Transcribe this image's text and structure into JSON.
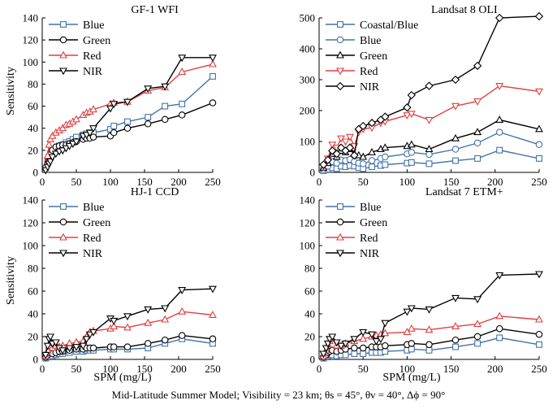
{
  "figure": {
    "xlabel": "SPM (mg/L)",
    "ylabel": "Sensitivity",
    "caption": "Mid-Latitude Summer Model; Visibility = 23 km; θs = 45°, θv = 40°, Δϕ = 90°"
  },
  "chart_data": [
    {
      "type": "line",
      "title": "GF-1 WFI",
      "xlim": [
        0,
        250
      ],
      "ylim": [
        0,
        140
      ],
      "xticks": [
        0,
        50,
        100,
        150,
        200,
        250
      ],
      "yticks": [
        0,
        20,
        40,
        60,
        80,
        100,
        120,
        140
      ],
      "legend_position": "top-left",
      "x": [
        5,
        8,
        10,
        12,
        15,
        20,
        25,
        30,
        35,
        40,
        45,
        50,
        60,
        65,
        70,
        75,
        100,
        105,
        125,
        155,
        180,
        205,
        250
      ],
      "series": [
        {
          "name": "Blue",
          "color": "#4472a8",
          "marker": "square",
          "values": [
            4,
            10,
            14,
            17,
            19,
            22,
            24,
            25,
            27,
            28,
            30,
            32,
            34,
            35,
            36,
            36,
            39,
            42,
            46,
            50,
            60,
            62,
            87
          ]
        },
        {
          "name": "Green",
          "color": "#000000",
          "marker": "circle",
          "values": [
            4,
            8,
            12,
            16,
            20,
            23,
            24,
            25,
            25,
            26,
            27,
            28,
            30,
            31,
            31,
            32,
            33,
            36,
            40,
            44,
            48,
            52,
            63
          ]
        },
        {
          "name": "Red",
          "color": "#e04040",
          "marker": "triangle-up",
          "values": [
            6,
            15,
            25,
            30,
            33,
            36,
            38,
            40,
            43,
            44,
            46,
            48,
            52,
            54,
            55,
            57,
            62,
            63,
            64,
            74,
            77,
            91,
            98
          ]
        },
        {
          "name": "NIR",
          "color": "#000000",
          "marker": "triangle-down",
          "values": [
            2,
            5,
            8,
            10,
            14,
            17,
            19,
            20,
            22,
            24,
            26,
            28,
            33,
            34,
            36,
            40,
            58,
            62,
            64,
            76,
            78,
            104,
            104
          ]
        }
      ]
    },
    {
      "type": "line",
      "title": "Landsat 8 OLI",
      "xlim": [
        0,
        250
      ],
      "ylim": [
        0,
        500
      ],
      "xticks": [
        0,
        50,
        100,
        150,
        200,
        250
      ],
      "yticks": [
        0,
        100,
        200,
        300,
        400,
        500
      ],
      "legend_position": "top-left",
      "x": [
        5,
        10,
        15,
        20,
        25,
        30,
        35,
        40,
        45,
        50,
        60,
        70,
        75,
        100,
        105,
        125,
        155,
        180,
        205,
        250
      ],
      "series": [
        {
          "name": "Coastal/Blue",
          "color": "#4472a8",
          "marker": "square",
          "values": [
            5,
            10,
            15,
            12,
            20,
            18,
            22,
            20,
            15,
            12,
            18,
            22,
            25,
            30,
            32,
            28,
            38,
            45,
            72,
            45
          ]
        },
        {
          "name": "Blue",
          "color": "#4472a8",
          "marker": "circle",
          "values": [
            10,
            20,
            35,
            30,
            40,
            38,
            42,
            35,
            30,
            28,
            38,
            45,
            50,
            60,
            65,
            58,
            75,
            95,
            130,
            90
          ]
        },
        {
          "name": "Green",
          "color": "#000000",
          "marker": "triangle-up",
          "values": [
            15,
            30,
            60,
            50,
            70,
            65,
            75,
            60,
            55,
            50,
            65,
            75,
            80,
            85,
            90,
            75,
            110,
            130,
            170,
            140
          ]
        },
        {
          "name": "Red",
          "color": "#e04040",
          "marker": "triangle-down",
          "values": [
            20,
            45,
            90,
            80,
            110,
            100,
            115,
            85,
            130,
            140,
            145,
            160,
            165,
            185,
            190,
            170,
            215,
            230,
            280,
            262
          ]
        },
        {
          "name": "NIR",
          "color": "#000000",
          "marker": "diamond",
          "values": [
            25,
            40,
            70,
            60,
            80,
            70,
            80,
            55,
            140,
            150,
            160,
            170,
            180,
            210,
            250,
            280,
            300,
            345,
            500,
            505
          ]
        }
      ]
    },
    {
      "type": "line",
      "title": "HJ-1 CCD",
      "xlim": [
        0,
        250
      ],
      "ylim": [
        0,
        140
      ],
      "xticks": [
        0,
        50,
        100,
        150,
        200,
        250
      ],
      "yticks": [
        0,
        20,
        40,
        60,
        80,
        100,
        120,
        140
      ],
      "legend_position": "top-left",
      "x": [
        5,
        8,
        10,
        12,
        15,
        20,
        25,
        30,
        40,
        50,
        60,
        65,
        70,
        75,
        100,
        105,
        125,
        155,
        180,
        205,
        250
      ],
      "series": [
        {
          "name": "Blue",
          "color": "#4472a8",
          "marker": "square",
          "values": [
            1,
            2,
            3,
            4,
            3,
            4,
            5,
            5,
            6,
            7,
            7,
            8,
            8,
            8,
            9,
            9,
            9,
            10,
            14,
            18,
            14
          ]
        },
        {
          "name": "Green",
          "color": "#000000",
          "marker": "circle",
          "values": [
            2,
            4,
            6,
            8,
            5,
            6,
            7,
            7,
            8,
            9,
            9,
            10,
            10,
            10,
            11,
            11,
            11,
            14,
            17,
            21,
            18
          ]
        },
        {
          "name": "Red",
          "color": "#e04040",
          "marker": "triangle-up",
          "values": [
            3,
            8,
            12,
            15,
            10,
            12,
            11,
            12,
            14,
            15,
            16,
            20,
            24,
            25,
            27,
            29,
            28,
            32,
            35,
            42,
            39
          ]
        },
        {
          "name": "NIR",
          "color": "#000000",
          "marker": "triangle-down",
          "values": [
            4,
            12,
            18,
            20,
            14,
            15,
            10,
            8,
            10,
            11,
            12,
            18,
            22,
            24,
            36,
            34,
            38,
            44,
            45,
            61,
            62
          ]
        }
      ]
    },
    {
      "type": "line",
      "title": "Landsat 7 ETM+",
      "xlim": [
        0,
        250
      ],
      "ylim": [
        0,
        140
      ],
      "xticks": [
        0,
        50,
        100,
        150,
        200,
        250
      ],
      "yticks": [
        0,
        20,
        40,
        60,
        80,
        100,
        120,
        140
      ],
      "legend_position": "top-left",
      "x": [
        5,
        8,
        10,
        12,
        15,
        20,
        25,
        30,
        40,
        50,
        60,
        65,
        70,
        75,
        100,
        105,
        125,
        155,
        180,
        205,
        250
      ],
      "series": [
        {
          "name": "Blue",
          "color": "#4472a8",
          "marker": "square",
          "values": [
            1,
            2,
            3,
            4,
            4,
            3,
            4,
            4,
            5,
            5,
            6,
            6,
            6,
            7,
            8,
            9,
            8,
            11,
            14,
            19,
            13
          ]
        },
        {
          "name": "Green",
          "color": "#000000",
          "marker": "circle",
          "values": [
            2,
            4,
            6,
            7,
            8,
            7,
            8,
            9,
            10,
            10,
            11,
            11,
            11,
            12,
            13,
            14,
            13,
            17,
            20,
            27,
            22
          ]
        },
        {
          "name": "Red",
          "color": "#e04040",
          "marker": "triangle-up",
          "values": [
            3,
            8,
            13,
            16,
            18,
            12,
            12,
            14,
            16,
            18,
            20,
            21,
            22,
            23,
            24,
            27,
            26,
            29,
            31,
            38,
            35
          ]
        },
        {
          "name": "NIR",
          "color": "#000000",
          "marker": "triangle-down",
          "values": [
            5,
            10,
            14,
            18,
            20,
            15,
            12,
            14,
            18,
            24,
            22,
            16,
            18,
            32,
            42,
            45,
            44,
            54,
            53,
            74,
            75
          ]
        }
      ]
    }
  ]
}
